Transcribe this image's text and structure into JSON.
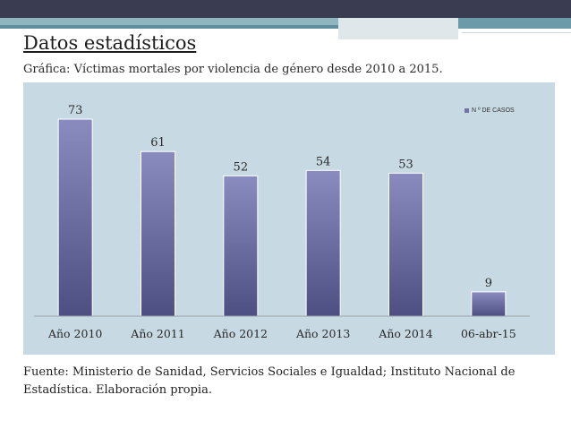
{
  "slide": {
    "title": "Datos estadísticos",
    "subtitle": "Gráfica: Víctimas mortales por violencia de género desde 2010 a 2015.",
    "source": "Fuente: Ministerio de Sanidad, Servicios Sociales e Igualdad; Instituto Nacional de Estadística. Elaboración propia."
  },
  "colors": {
    "bar": "#7274a8",
    "bar_dark": "#4d4f82",
    "plot_bg": "#c7d9e2",
    "header": "#3a3d52"
  },
  "chart_data": {
    "type": "bar",
    "title": "Víctimas mortales por violencia de género desde 2010 a 2015",
    "categories": [
      "Año 2010",
      "Año 2011",
      "Año 2012",
      "Año 2013",
      "Año 2014",
      "06-abr-15"
    ],
    "series": [
      {
        "name": "N º DE CASOS",
        "values": [
          73,
          61,
          52,
          54,
          53,
          9
        ]
      }
    ],
    "ylim": [
      0,
      80
    ],
    "grid": false,
    "legend": "top-right",
    "xlabel": "",
    "ylabel": ""
  }
}
